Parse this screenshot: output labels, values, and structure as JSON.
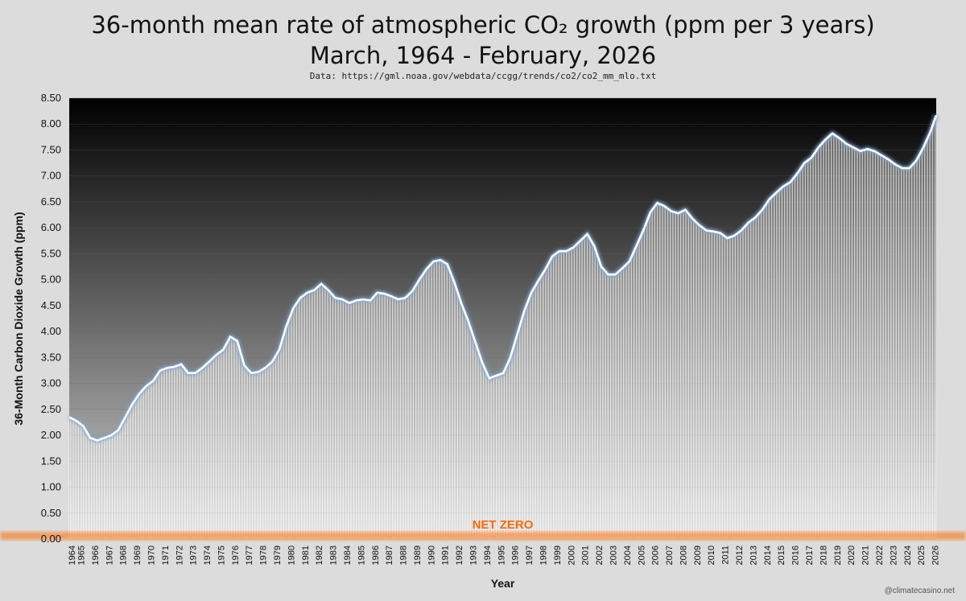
{
  "title_line1": "36-month mean rate of atmospheric CO₂ growth (ppm per 3 years)",
  "title_line2": "March, 1964 - February, 2026",
  "subtitle": "Data: https://gml.noaa.gov/webdata/ccgg/trends/co2/co2_mm_mlo.txt",
  "credit": "@climatecasino.net",
  "colors": {
    "plot_bg_top": "#000000",
    "plot_bg_bottom": "#d0d0d0",
    "bar": "#ffffff",
    "line": "#ffffff",
    "line_glow": "#7ea6d8",
    "net_zero": "#ff6a00"
  },
  "chart_data": {
    "type": "bar",
    "title": "36-month mean rate of atmospheric CO₂ growth (ppm per 3 years)",
    "subtitle": "March, 1964 - February, 2026",
    "xlabel": "Year",
    "ylabel": "36-Month Carbon Dioxide Growth (ppm)",
    "ylim": [
      0,
      8.5
    ],
    "yticks": [
      "0.00",
      "0.50",
      "1.00",
      "1.50",
      "2.00",
      "2.50",
      "3.00",
      "3.50",
      "4.00",
      "4.50",
      "5.00",
      "5.50",
      "6.00",
      "6.50",
      "7.00",
      "7.50",
      "8.00",
      "8.50"
    ],
    "xticks": [
      "1964",
      "1965",
      "1966",
      "1967",
      "1968",
      "1969",
      "1970",
      "1971",
      "1972",
      "1973",
      "1974",
      "1975",
      "1976",
      "1977",
      "1978",
      "1979",
      "1980",
      "1981",
      "1982",
      "1983",
      "1984",
      "1985",
      "1986",
      "1987",
      "1988",
      "1989",
      "1990",
      "1991",
      "1992",
      "1993",
      "1994",
      "1995",
      "1996",
      "1997",
      "1998",
      "1999",
      "2000",
      "2001",
      "2002",
      "2003",
      "2004",
      "2005",
      "2006",
      "2007",
      "2008",
      "2009",
      "2010",
      "2011",
      "2012",
      "2013",
      "2014",
      "2015",
      "2016",
      "2017",
      "2018",
      "2019",
      "2020",
      "2021",
      "2022",
      "2023",
      "2024",
      "2025",
      "2026"
    ],
    "grid": true,
    "legend": "none",
    "annotation": "NET ZERO",
    "x_range": [
      "1964-03",
      "2026-02"
    ],
    "series": [
      {
        "points": [
          [
            "1964-03",
            2.35
          ],
          [
            "1964-09",
            2.28
          ],
          [
            "1965-03",
            2.18
          ],
          [
            "1965-09",
            1.95
          ],
          [
            "1966-03",
            1.9
          ],
          [
            "1966-09",
            1.95
          ],
          [
            "1967-03",
            2.0
          ],
          [
            "1967-09",
            2.1
          ],
          [
            "1968-03",
            2.35
          ],
          [
            "1968-09",
            2.6
          ],
          [
            "1969-03",
            2.8
          ],
          [
            "1969-09",
            2.95
          ],
          [
            "1970-03",
            3.05
          ],
          [
            "1970-09",
            3.25
          ],
          [
            "1971-03",
            3.3
          ],
          [
            "1971-09",
            3.32
          ],
          [
            "1972-03",
            3.37
          ],
          [
            "1972-09",
            3.2
          ],
          [
            "1973-03",
            3.2
          ],
          [
            "1973-09",
            3.3
          ],
          [
            "1974-03",
            3.42
          ],
          [
            "1974-09",
            3.55
          ],
          [
            "1975-03",
            3.65
          ],
          [
            "1975-09",
            3.9
          ],
          [
            "1976-03",
            3.82
          ],
          [
            "1976-09",
            3.35
          ],
          [
            "1977-03",
            3.2
          ],
          [
            "1977-09",
            3.22
          ],
          [
            "1978-03",
            3.3
          ],
          [
            "1978-09",
            3.42
          ],
          [
            "1979-03",
            3.65
          ],
          [
            "1979-09",
            4.1
          ],
          [
            "1980-03",
            4.45
          ],
          [
            "1980-09",
            4.65
          ],
          [
            "1981-03",
            4.75
          ],
          [
            "1981-09",
            4.8
          ],
          [
            "1982-03",
            4.92
          ],
          [
            "1982-09",
            4.8
          ],
          [
            "1983-03",
            4.65
          ],
          [
            "1983-09",
            4.62
          ],
          [
            "1984-03",
            4.55
          ],
          [
            "1984-09",
            4.6
          ],
          [
            "1985-03",
            4.62
          ],
          [
            "1985-09",
            4.6
          ],
          [
            "1986-03",
            4.75
          ],
          [
            "1986-09",
            4.73
          ],
          [
            "1987-03",
            4.68
          ],
          [
            "1987-09",
            4.62
          ],
          [
            "1988-03",
            4.65
          ],
          [
            "1988-09",
            4.78
          ],
          [
            "1989-03",
            5.0
          ],
          [
            "1989-09",
            5.2
          ],
          [
            "1990-03",
            5.35
          ],
          [
            "1990-09",
            5.38
          ],
          [
            "1991-03",
            5.3
          ],
          [
            "1991-09",
            4.95
          ],
          [
            "1992-03",
            4.55
          ],
          [
            "1992-09",
            4.2
          ],
          [
            "1993-03",
            3.8
          ],
          [
            "1993-09",
            3.4
          ],
          [
            "1994-03",
            3.1
          ],
          [
            "1994-09",
            3.15
          ],
          [
            "1995-03",
            3.2
          ],
          [
            "1995-09",
            3.5
          ],
          [
            "1996-03",
            3.95
          ],
          [
            "1996-09",
            4.4
          ],
          [
            "1997-03",
            4.75
          ],
          [
            "1997-09",
            4.98
          ],
          [
            "1998-03",
            5.2
          ],
          [
            "1998-09",
            5.45
          ],
          [
            "1999-03",
            5.55
          ],
          [
            "1999-09",
            5.55
          ],
          [
            "2000-03",
            5.62
          ],
          [
            "2000-09",
            5.75
          ],
          [
            "2001-03",
            5.88
          ],
          [
            "2001-09",
            5.65
          ],
          [
            "2002-03",
            5.25
          ],
          [
            "2002-09",
            5.1
          ],
          [
            "2003-03",
            5.1
          ],
          [
            "2003-09",
            5.22
          ],
          [
            "2004-03",
            5.35
          ],
          [
            "2004-09",
            5.65
          ],
          [
            "2005-03",
            5.95
          ],
          [
            "2005-09",
            6.3
          ],
          [
            "2006-03",
            6.48
          ],
          [
            "2006-09",
            6.42
          ],
          [
            "2007-03",
            6.32
          ],
          [
            "2007-09",
            6.28
          ],
          [
            "2008-03",
            6.35
          ],
          [
            "2008-09",
            6.18
          ],
          [
            "2009-03",
            6.05
          ],
          [
            "2009-09",
            5.95
          ],
          [
            "2010-03",
            5.93
          ],
          [
            "2010-09",
            5.9
          ],
          [
            "2011-03",
            5.8
          ],
          [
            "2011-09",
            5.85
          ],
          [
            "2012-03",
            5.95
          ],
          [
            "2012-09",
            6.1
          ],
          [
            "2013-03",
            6.2
          ],
          [
            "2013-09",
            6.35
          ],
          [
            "2014-03",
            6.55
          ],
          [
            "2014-09",
            6.68
          ],
          [
            "2015-03",
            6.8
          ],
          [
            "2015-09",
            6.88
          ],
          [
            "2016-03",
            7.05
          ],
          [
            "2016-09",
            7.25
          ],
          [
            "2017-03",
            7.35
          ],
          [
            "2017-09",
            7.55
          ],
          [
            "2018-03",
            7.7
          ],
          [
            "2018-09",
            7.82
          ],
          [
            "2019-03",
            7.73
          ],
          [
            "2019-09",
            7.62
          ],
          [
            "2020-03",
            7.55
          ],
          [
            "2020-09",
            7.48
          ],
          [
            "2021-03",
            7.52
          ],
          [
            "2021-09",
            7.48
          ],
          [
            "2022-03",
            7.4
          ],
          [
            "2022-09",
            7.32
          ],
          [
            "2023-03",
            7.22
          ],
          [
            "2023-09",
            7.15
          ],
          [
            "2024-03",
            7.15
          ],
          [
            "2024-09",
            7.3
          ],
          [
            "2025-03",
            7.55
          ],
          [
            "2025-09",
            7.85
          ],
          [
            "2026-02",
            8.17
          ]
        ]
      }
    ]
  }
}
